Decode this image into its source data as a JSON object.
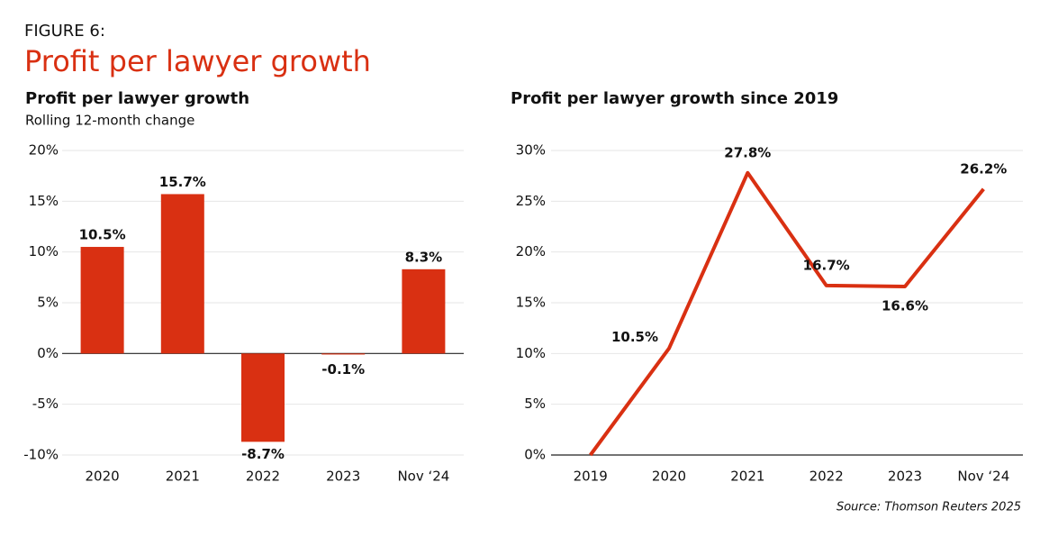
{
  "figure_label": "FIGURE 6:",
  "title": "Profit per lawyer growth",
  "source": "Source: Thomson Reuters 2025",
  "chart_data": [
    {
      "type": "bar",
      "title": "Profit per lawyer growth",
      "subtitle": "Rolling 12-month change",
      "categories": [
        "2020",
        "2021",
        "2022",
        "2023",
        "Nov ‘24"
      ],
      "values": [
        10.5,
        15.7,
        -8.7,
        -0.1,
        8.3
      ],
      "value_labels": [
        "10.5%",
        "15.7%",
        "-8.7%",
        "-0.1%",
        "8.3%"
      ],
      "color": "#d93012",
      "ylim": [
        -10,
        20
      ],
      "grid": true,
      "yticks": [
        {
          "value": -10,
          "label": "-10%"
        },
        {
          "value": -5,
          "label": "-5%"
        },
        {
          "value": 0,
          "label": "0%"
        },
        {
          "value": 5,
          "label": "5%"
        },
        {
          "value": 10,
          "label": "10%"
        },
        {
          "value": 15,
          "label": "15%"
        },
        {
          "value": 20,
          "label": "20%"
        }
      ]
    },
    {
      "type": "line",
      "title": "Profit per lawyer growth since 2019",
      "categories": [
        "2019",
        "2020",
        "2021",
        "2022",
        "2023",
        "Nov ‘24"
      ],
      "values": [
        0,
        10.5,
        27.8,
        16.7,
        16.6,
        26.2
      ],
      "value_labels": [
        null,
        "10.5%",
        "27.8%",
        "16.7%",
        "16.6%",
        "26.2%"
      ],
      "color": "#d93012",
      "ylim": [
        0,
        30
      ],
      "grid": true,
      "yticks": [
        {
          "value": 0,
          "label": "0%"
        },
        {
          "value": 5,
          "label": "5%"
        },
        {
          "value": 10,
          "label": "10%"
        },
        {
          "value": 15,
          "label": "15%"
        },
        {
          "value": 20,
          "label": "20%"
        },
        {
          "value": 25,
          "label": "25%"
        },
        {
          "value": 30,
          "label": "30%"
        }
      ]
    }
  ]
}
